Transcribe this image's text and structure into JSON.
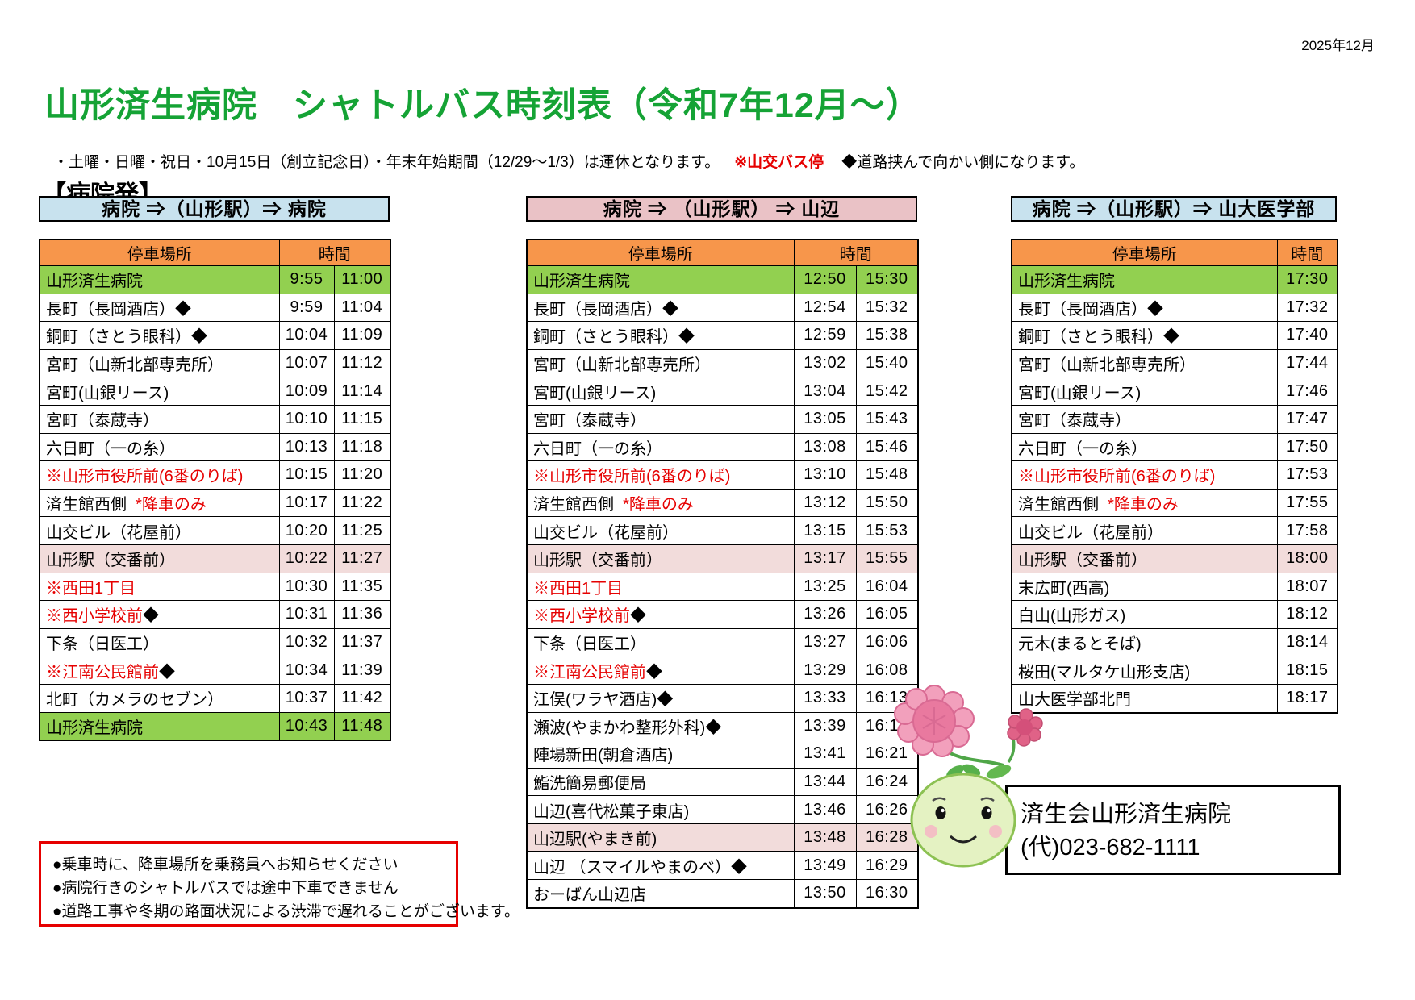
{
  "page": {
    "doc_date": "2025年12月",
    "title": "山形済生病院　シャトルバス時刻表（令和7年12月～）",
    "subtitle_black": "・土曜・日曜・祝日・10月15日（創立記念日）・年末年始期間（12/29～1/3）は運休となります。",
    "subtitle_red": "※山交バス停",
    "subtitle_black2": "◆道路挟んで向かい側になります。",
    "section_heading": "【病院発】"
  },
  "colors": {
    "title_green": "#15A335",
    "header_orange": "#F7964B",
    "row_green": "#92D050",
    "row_pink": "#F2DCDB",
    "banner_blue": "#C8E2EE",
    "banner_pink": "#EAC2C6",
    "red_text": "#E60000"
  },
  "table_headers": {
    "stop": "停車場所",
    "time": "時間"
  },
  "tables": [
    {
      "banner": "病院 ⇒（山形駅）⇒ 病院",
      "banner_style": "blue",
      "time_cols": 2,
      "rows": [
        {
          "bg": "green",
          "parts": [
            {
              "t": "山形済生病院",
              "c": "black"
            }
          ],
          "times": [
            "9:55",
            "11:00"
          ]
        },
        {
          "parts": [
            {
              "t": "長町（長岡酒店）◆",
              "c": "black"
            }
          ],
          "times": [
            "9:59",
            "11:04"
          ]
        },
        {
          "parts": [
            {
              "t": "銅町（さとう眼科）◆",
              "c": "black"
            }
          ],
          "times": [
            "10:04",
            "11:09"
          ]
        },
        {
          "parts": [
            {
              "t": "宮町（山新北部専売所）",
              "c": "black"
            }
          ],
          "times": [
            "10:07",
            "11:12"
          ]
        },
        {
          "parts": [
            {
              "t": "宮町(山銀リース)",
              "c": "black"
            }
          ],
          "times": [
            "10:09",
            "11:14"
          ]
        },
        {
          "parts": [
            {
              "t": "宮町（泰蔵寺）",
              "c": "black"
            }
          ],
          "times": [
            "10:10",
            "11:15"
          ]
        },
        {
          "parts": [
            {
              "t": "六日町（一の糸）",
              "c": "black"
            }
          ],
          "times": [
            "10:13",
            "11:18"
          ]
        },
        {
          "parts": [
            {
              "t": "※山形市役所前(6番のりば)",
              "c": "red"
            }
          ],
          "times": [
            "10:15",
            "11:20"
          ]
        },
        {
          "parts": [
            {
              "t": "済生館西側",
              "c": "black"
            },
            {
              "t": "  *降車のみ",
              "c": "red"
            }
          ],
          "times": [
            "10:17",
            "11:22"
          ]
        },
        {
          "parts": [
            {
              "t": "山交ビル（花屋前）",
              "c": "black"
            }
          ],
          "times": [
            "10:20",
            "11:25"
          ]
        },
        {
          "bg": "pink",
          "parts": [
            {
              "t": "山形駅（交番前）",
              "c": "black"
            }
          ],
          "times": [
            "10:22",
            "11:27"
          ]
        },
        {
          "parts": [
            {
              "t": "※西田1丁目",
              "c": "red"
            }
          ],
          "times": [
            "10:30",
            "11:35"
          ]
        },
        {
          "parts": [
            {
              "t": "※西小学校前",
              "c": "red"
            },
            {
              "t": "◆",
              "c": "black"
            }
          ],
          "times": [
            "10:31",
            "11:36"
          ]
        },
        {
          "parts": [
            {
              "t": "下条（日医工）",
              "c": "black"
            }
          ],
          "times": [
            "10:32",
            "11:37"
          ]
        },
        {
          "parts": [
            {
              "t": "※江南公民館前",
              "c": "red"
            },
            {
              "t": "◆",
              "c": "black"
            }
          ],
          "times": [
            "10:34",
            "11:39"
          ]
        },
        {
          "parts": [
            {
              "t": "北町（カメラのセブン）",
              "c": "black"
            }
          ],
          "times": [
            "10:37",
            "11:42"
          ]
        },
        {
          "bg": "green",
          "parts": [
            {
              "t": "山形済生病院",
              "c": "black"
            }
          ],
          "times": [
            "10:43",
            "11:48"
          ]
        }
      ]
    },
    {
      "banner": "病院 ⇒ （山形駅） ⇒ 山辺",
      "banner_style": "pink",
      "time_cols": 2,
      "rows": [
        {
          "bg": "green",
          "parts": [
            {
              "t": "山形済生病院",
              "c": "black"
            }
          ],
          "times": [
            "12:50",
            "15:30"
          ]
        },
        {
          "parts": [
            {
              "t": "長町（長岡酒店）◆",
              "c": "black"
            }
          ],
          "times": [
            "12:54",
            "15:32"
          ]
        },
        {
          "parts": [
            {
              "t": "銅町（さとう眼科）◆",
              "c": "black"
            }
          ],
          "times": [
            "12:59",
            "15:38"
          ]
        },
        {
          "parts": [
            {
              "t": "宮町（山新北部専売所）",
              "c": "black"
            }
          ],
          "times": [
            "13:02",
            "15:40"
          ]
        },
        {
          "parts": [
            {
              "t": "宮町(山銀リース)",
              "c": "black"
            }
          ],
          "times": [
            "13:04",
            "15:42"
          ]
        },
        {
          "parts": [
            {
              "t": "宮町（泰蔵寺）",
              "c": "black"
            }
          ],
          "times": [
            "13:05",
            "15:43"
          ]
        },
        {
          "parts": [
            {
              "t": "六日町（一の糸）",
              "c": "black"
            }
          ],
          "times": [
            "13:08",
            "15:46"
          ]
        },
        {
          "parts": [
            {
              "t": "※山形市役所前(6番のりば)",
              "c": "red"
            }
          ],
          "times": [
            "13:10",
            "15:48"
          ]
        },
        {
          "parts": [
            {
              "t": "済生館西側",
              "c": "black"
            },
            {
              "t": "  *降車のみ",
              "c": "red"
            }
          ],
          "times": [
            "13:12",
            "15:50"
          ]
        },
        {
          "parts": [
            {
              "t": "山交ビル（花屋前）",
              "c": "black"
            }
          ],
          "times": [
            "13:15",
            "15:53"
          ]
        },
        {
          "bg": "pink",
          "parts": [
            {
              "t": "山形駅（交番前）",
              "c": "black"
            }
          ],
          "times": [
            "13:17",
            "15:55"
          ]
        },
        {
          "parts": [
            {
              "t": "※西田1丁目",
              "c": "red"
            }
          ],
          "times": [
            "13:25",
            "16:04"
          ]
        },
        {
          "parts": [
            {
              "t": "※西小学校前",
              "c": "red"
            },
            {
              "t": "◆",
              "c": "black"
            }
          ],
          "times": [
            "13:26",
            "16:05"
          ]
        },
        {
          "parts": [
            {
              "t": "下条（日医工）",
              "c": "black"
            }
          ],
          "times": [
            "13:27",
            "16:06"
          ]
        },
        {
          "parts": [
            {
              "t": "※江南公民館前",
              "c": "red"
            },
            {
              "t": "◆",
              "c": "black"
            }
          ],
          "times": [
            "13:29",
            "16:08"
          ]
        },
        {
          "parts": [
            {
              "t": "江俣(ワラヤ酒店)◆",
              "c": "black"
            }
          ],
          "times": [
            "13:33",
            "16:13"
          ]
        },
        {
          "parts": [
            {
              "t": "瀬波(やまかわ整形外科)◆",
              "c": "black"
            }
          ],
          "times": [
            "13:39",
            "16:19"
          ]
        },
        {
          "parts": [
            {
              "t": "陣場新田(朝倉酒店)",
              "c": "black"
            }
          ],
          "times": [
            "13:41",
            "16:21"
          ]
        },
        {
          "parts": [
            {
              "t": "鮨洗簡易郵便局",
              "c": "black"
            }
          ],
          "times": [
            "13:44",
            "16:24"
          ]
        },
        {
          "parts": [
            {
              "t": "山辺(喜代松菓子東店)",
              "c": "black"
            }
          ],
          "times": [
            "13:46",
            "16:26"
          ]
        },
        {
          "bg": "pink",
          "parts": [
            {
              "t": "山辺駅(やまき前)",
              "c": "black"
            }
          ],
          "times": [
            "13:48",
            "16:28"
          ]
        },
        {
          "parts": [
            {
              "t": "山辺 （スマイルやまのべ）◆",
              "c": "black"
            }
          ],
          "times": [
            "13:49",
            "16:29"
          ]
        },
        {
          "parts": [
            {
              "t": "おーばん山辺店",
              "c": "black"
            }
          ],
          "times": [
            "13:50",
            "16:30"
          ]
        }
      ]
    },
    {
      "banner": "病院 ⇒（山形駅）⇒ 山大医学部",
      "banner_style": "blue",
      "time_cols": 1,
      "rows": [
        {
          "bg": "green",
          "parts": [
            {
              "t": "山形済生病院",
              "c": "black"
            }
          ],
          "times": [
            "17:30"
          ]
        },
        {
          "parts": [
            {
              "t": "長町（長岡酒店）◆",
              "c": "black"
            }
          ],
          "times": [
            "17:32"
          ]
        },
        {
          "parts": [
            {
              "t": "銅町（さとう眼科）◆",
              "c": "black"
            }
          ],
          "times": [
            "17:40"
          ]
        },
        {
          "parts": [
            {
              "t": "宮町（山新北部専売所）",
              "c": "black"
            }
          ],
          "times": [
            "17:44"
          ]
        },
        {
          "parts": [
            {
              "t": "宮町(山銀リース)",
              "c": "black"
            }
          ],
          "times": [
            "17:46"
          ]
        },
        {
          "parts": [
            {
              "t": "宮町（泰蔵寺）",
              "c": "black"
            }
          ],
          "times": [
            "17:47"
          ]
        },
        {
          "parts": [
            {
              "t": "六日町（一の糸）",
              "c": "black"
            }
          ],
          "times": [
            "17:50"
          ]
        },
        {
          "parts": [
            {
              "t": "※山形市役所前(6番のりば)",
              "c": "red"
            }
          ],
          "times": [
            "17:53"
          ]
        },
        {
          "parts": [
            {
              "t": "済生館西側",
              "c": "black"
            },
            {
              "t": "  *降車のみ",
              "c": "red"
            }
          ],
          "times": [
            "17:55"
          ]
        },
        {
          "parts": [
            {
              "t": "山交ビル（花屋前）",
              "c": "black"
            }
          ],
          "times": [
            "17:58"
          ]
        },
        {
          "bg": "pink",
          "parts": [
            {
              "t": "山形駅（交番前）",
              "c": "black"
            }
          ],
          "times": [
            "18:00"
          ]
        },
        {
          "parts": [
            {
              "t": "末広町(西高)",
              "c": "black"
            }
          ],
          "times": [
            "18:07"
          ]
        },
        {
          "parts": [
            {
              "t": "白山(山形ガス)",
              "c": "black"
            }
          ],
          "times": [
            "18:12"
          ]
        },
        {
          "parts": [
            {
              "t": "元木(まるとそば)",
              "c": "black"
            }
          ],
          "times": [
            "18:14"
          ]
        },
        {
          "parts": [
            {
              "t": "桜田(マルタケ山形支店)",
              "c": "black"
            }
          ],
          "times": [
            "18:15"
          ]
        },
        {
          "parts": [
            {
              "t": "山大医学部北門",
              "c": "black"
            }
          ],
          "times": [
            "18:17"
          ]
        }
      ]
    }
  ],
  "notes_box": {
    "items": [
      "●乗車時に、降車場所を乗務員へお知らせください",
      "●病院行きのシャトルバスでは途中下車できません",
      "●道路工事や冬期の路面状況による渋滞で遅れることがございます。"
    ]
  },
  "contact": {
    "name": "済生会山形済生病院",
    "phone": "(代)023-682-1111"
  },
  "mascot": {
    "label": "hospital-mascot"
  }
}
